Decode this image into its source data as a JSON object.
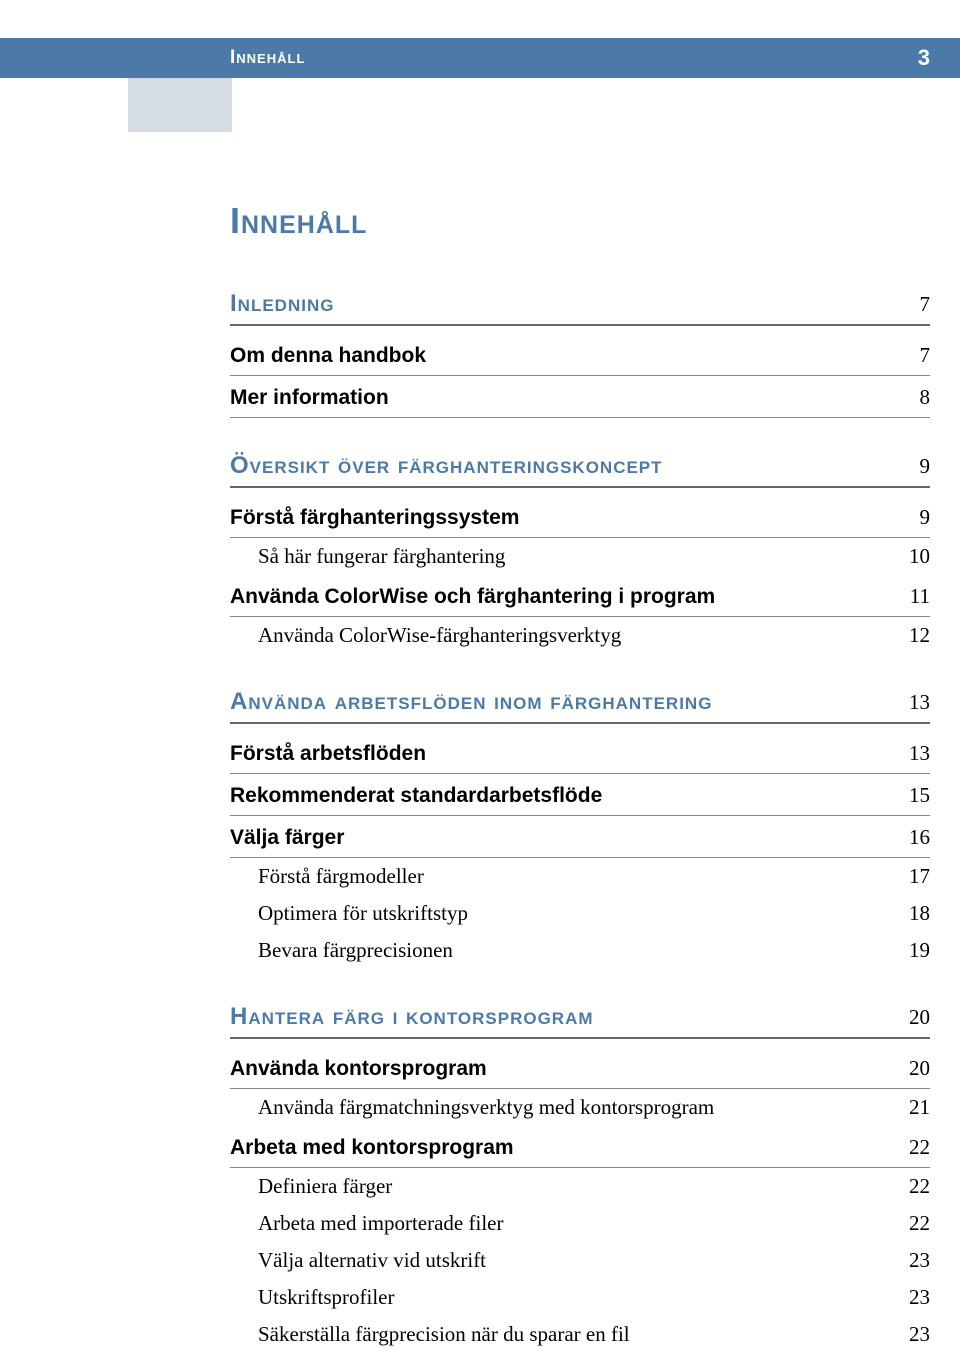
{
  "header": {
    "title": "Innehåll",
    "page": "3"
  },
  "mainTitle": "Innehåll",
  "sections": [
    {
      "heading": "Inledning",
      "page": "7",
      "entries": [
        {
          "type": "bold",
          "label": "Om denna handbok",
          "page": "7"
        },
        {
          "type": "bold",
          "label": "Mer information",
          "page": "8"
        }
      ]
    },
    {
      "heading": "Översikt över färghanteringskoncept",
      "page": "9",
      "entries": [
        {
          "type": "bold",
          "label": "Förstå färghanteringssystem",
          "page": "9"
        },
        {
          "type": "sub",
          "label": "Så här fungerar färghantering",
          "page": "10"
        },
        {
          "type": "bold",
          "label": "Använda ColorWise och färghantering i program",
          "page": "11"
        },
        {
          "type": "sub",
          "label": "Använda ColorWise-färghanteringsverktyg",
          "page": "12"
        }
      ]
    },
    {
      "heading": "Använda arbetsflöden inom färghantering",
      "page": "13",
      "entries": [
        {
          "type": "bold",
          "label": "Förstå arbetsflöden",
          "page": "13"
        },
        {
          "type": "bold",
          "label": "Rekommenderat standardarbetsflöde",
          "page": "15"
        },
        {
          "type": "bold",
          "label": "Välja färger",
          "page": "16"
        },
        {
          "type": "sub",
          "label": "Förstå färgmodeller",
          "page": "17"
        },
        {
          "type": "sub",
          "label": "Optimera för utskriftstyp",
          "page": "18"
        },
        {
          "type": "sub",
          "label": "Bevara färgprecisionen",
          "page": "19"
        }
      ]
    },
    {
      "heading": "Hantera färg i kontorsprogram",
      "page": "20",
      "entries": [
        {
          "type": "bold",
          "label": "Använda kontorsprogram",
          "page": "20"
        },
        {
          "type": "sub",
          "label": "Använda färgmatchningsverktyg med kontorsprogram",
          "page": "21"
        },
        {
          "type": "bold",
          "label": "Arbeta med kontorsprogram",
          "page": "22"
        },
        {
          "type": "sub",
          "label": "Definiera färger",
          "page": "22"
        },
        {
          "type": "sub",
          "label": "Arbeta med importerade filer",
          "page": "22"
        },
        {
          "type": "sub",
          "label": "Välja alternativ vid utskrift",
          "page": "23"
        },
        {
          "type": "sub",
          "label": "Utskriftsprofiler",
          "page": "23"
        },
        {
          "type": "sub",
          "label": "Säkerställa färgprecision när du sparar en fil",
          "page": "23"
        }
      ]
    }
  ]
}
